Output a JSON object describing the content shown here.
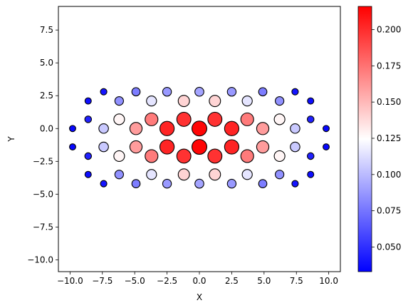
{
  "chart_data": {
    "type": "scatter",
    "xlabel": "X",
    "ylabel": "Y",
    "xlim": [
      -10.9,
      10.9
    ],
    "ylim": [
      -10.9,
      9.3
    ],
    "x_ticks": [
      -10.0,
      -7.5,
      -5.0,
      -2.5,
      0.0,
      2.5,
      5.0,
      7.5,
      10.0
    ],
    "x_tick_labels": [
      "−10.0",
      "−7.5",
      "−5.0",
      "−2.5",
      "0.0",
      "2.5",
      "5.0",
      "7.5",
      "10.0"
    ],
    "y_ticks": [
      7.5,
      5.0,
      2.5,
      0.0,
      -2.5,
      -5.0,
      -7.5,
      -10.0
    ],
    "y_tick_labels": [
      "7.5",
      "5.0",
      "2.5",
      "0.0",
      "−2.5",
      "−5.0",
      "−7.5",
      "−10.0"
    ],
    "colorbar": {
      "colormap": "bwr",
      "range": [
        0.033,
        0.216
      ],
      "ticks": [
        0.05,
        0.075,
        0.1,
        0.125,
        0.15,
        0.175,
        0.2
      ],
      "tick_labels": [
        "0.050",
        "0.075",
        "0.100",
        "0.125",
        "0.150",
        "0.175",
        "0.200"
      ]
    },
    "marker_edge_color": "#000000",
    "points": [
      {
        "x": -9.8,
        "y": 0.0,
        "value": 0.036
      },
      {
        "x": -9.8,
        "y": -1.4,
        "value": 0.036
      },
      {
        "x": 9.8,
        "y": 0.0,
        "value": 0.036
      },
      {
        "x": 9.8,
        "y": -1.4,
        "value": 0.036
      },
      {
        "x": -8.6,
        "y": 2.1,
        "value": 0.038
      },
      {
        "x": -8.6,
        "y": 0.7,
        "value": 0.045
      },
      {
        "x": -8.6,
        "y": -2.1,
        "value": 0.045
      },
      {
        "x": -8.6,
        "y": -3.5,
        "value": 0.038
      },
      {
        "x": 8.6,
        "y": 2.1,
        "value": 0.038
      },
      {
        "x": 8.6,
        "y": 0.7,
        "value": 0.045
      },
      {
        "x": 8.6,
        "y": -2.1,
        "value": 0.045
      },
      {
        "x": 8.6,
        "y": -3.5,
        "value": 0.038
      },
      {
        "x": -7.4,
        "y": 2.8,
        "value": 0.04
      },
      {
        "x": -7.4,
        "y": 0.0,
        "value": 0.105
      },
      {
        "x": -7.4,
        "y": -1.4,
        "value": 0.105
      },
      {
        "x": -7.4,
        "y": -4.2,
        "value": 0.04
      },
      {
        "x": 7.4,
        "y": 2.8,
        "value": 0.04
      },
      {
        "x": 7.4,
        "y": 0.0,
        "value": 0.105
      },
      {
        "x": 7.4,
        "y": -1.4,
        "value": 0.105
      },
      {
        "x": 7.4,
        "y": -4.2,
        "value": 0.04
      },
      {
        "x": -6.2,
        "y": 2.1,
        "value": 0.085
      },
      {
        "x": -6.2,
        "y": 0.7,
        "value": 0.128
      },
      {
        "x": -6.2,
        "y": -2.1,
        "value": 0.128
      },
      {
        "x": -6.2,
        "y": -3.5,
        "value": 0.085
      },
      {
        "x": 6.2,
        "y": 2.1,
        "value": 0.085
      },
      {
        "x": 6.2,
        "y": 0.7,
        "value": 0.128
      },
      {
        "x": 6.2,
        "y": -2.1,
        "value": 0.128
      },
      {
        "x": 6.2,
        "y": -3.5,
        "value": 0.085
      },
      {
        "x": -4.9,
        "y": 2.8,
        "value": 0.078
      },
      {
        "x": -4.9,
        "y": 0.0,
        "value": 0.16
      },
      {
        "x": -4.9,
        "y": -1.4,
        "value": 0.16
      },
      {
        "x": -4.9,
        "y": -4.2,
        "value": 0.078
      },
      {
        "x": 4.9,
        "y": 2.8,
        "value": 0.078
      },
      {
        "x": 4.9,
        "y": 0.0,
        "value": 0.16
      },
      {
        "x": 4.9,
        "y": -1.4,
        "value": 0.16
      },
      {
        "x": 4.9,
        "y": -4.2,
        "value": 0.078
      },
      {
        "x": -3.7,
        "y": 2.1,
        "value": 0.115
      },
      {
        "x": -3.7,
        "y": 0.7,
        "value": 0.172
      },
      {
        "x": -3.7,
        "y": -2.1,
        "value": 0.172
      },
      {
        "x": -3.7,
        "y": -3.5,
        "value": 0.115
      },
      {
        "x": 3.7,
        "y": 2.1,
        "value": 0.115
      },
      {
        "x": 3.7,
        "y": 0.7,
        "value": 0.172
      },
      {
        "x": 3.7,
        "y": -2.1,
        "value": 0.172
      },
      {
        "x": 3.7,
        "y": -3.5,
        "value": 0.115
      },
      {
        "x": -2.5,
        "y": 2.8,
        "value": 0.088
      },
      {
        "x": -2.5,
        "y": 0.0,
        "value": 0.203
      },
      {
        "x": -2.5,
        "y": -1.4,
        "value": 0.203
      },
      {
        "x": -2.5,
        "y": -4.2,
        "value": 0.088
      },
      {
        "x": 2.5,
        "y": 2.8,
        "value": 0.088
      },
      {
        "x": 2.5,
        "y": 0.0,
        "value": 0.203
      },
      {
        "x": 2.5,
        "y": -1.4,
        "value": 0.203
      },
      {
        "x": 2.5,
        "y": -4.2,
        "value": 0.088
      },
      {
        "x": -1.2,
        "y": 2.1,
        "value": 0.14
      },
      {
        "x": -1.2,
        "y": 0.7,
        "value": 0.198
      },
      {
        "x": -1.2,
        "y": -2.1,
        "value": 0.198
      },
      {
        "x": -1.2,
        "y": -3.5,
        "value": 0.14
      },
      {
        "x": 1.2,
        "y": 2.1,
        "value": 0.14
      },
      {
        "x": 1.2,
        "y": 0.7,
        "value": 0.198
      },
      {
        "x": 1.2,
        "y": -2.1,
        "value": 0.198
      },
      {
        "x": 1.2,
        "y": -3.5,
        "value": 0.14
      },
      {
        "x": 0.0,
        "y": 2.8,
        "value": 0.092
      },
      {
        "x": 0.0,
        "y": 0.0,
        "value": 0.214
      },
      {
        "x": 0.0,
        "y": -1.4,
        "value": 0.214
      },
      {
        "x": 0.0,
        "y": -4.2,
        "value": 0.092
      }
    ]
  }
}
